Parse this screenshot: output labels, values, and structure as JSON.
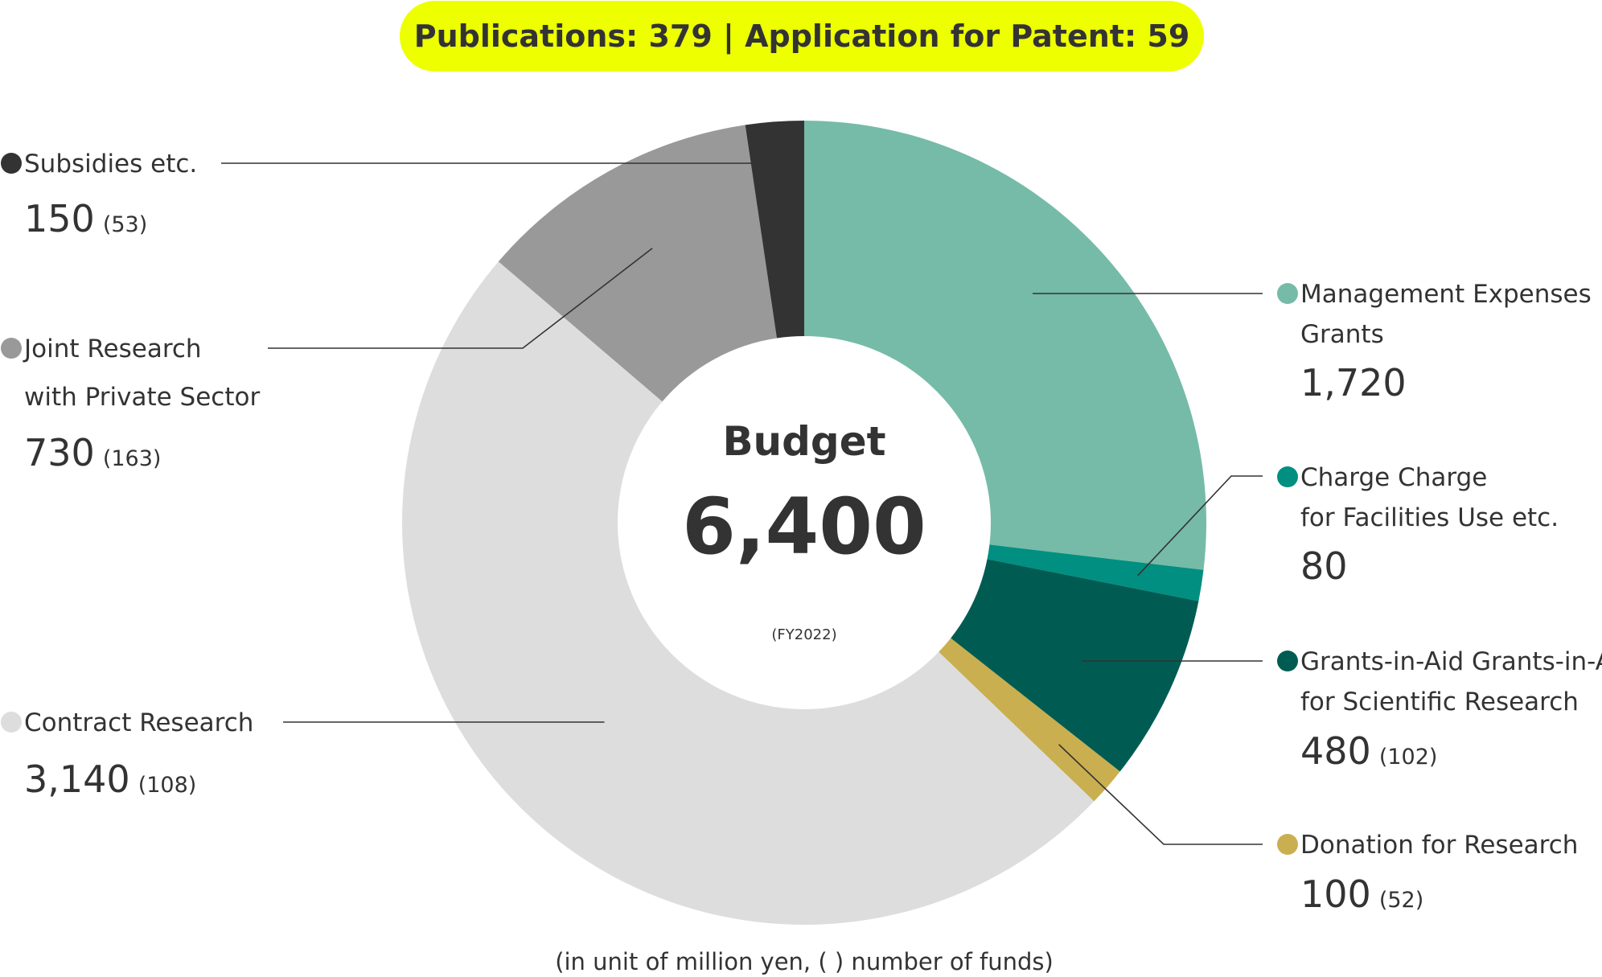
{
  "header": {
    "pill_text": "Publications: 379 | Application for Patent: 59",
    "pill_color": "#EEFF00"
  },
  "center": {
    "title": "Budget",
    "total": "6,400",
    "fiscal_year": "(FY2022)"
  },
  "note": "(in unit of million yen, ( ) number of funds)",
  "chart_data": {
    "type": "pie",
    "subtype": "donut",
    "units": "million yen",
    "total": 6400,
    "slices": [
      {
        "key": "management",
        "label_lines": [
          "Management Expenses",
          "Grants"
        ],
        "value": 1720,
        "value_text": "1,720",
        "count_text": "",
        "color": "#76BBA7",
        "side": "right"
      },
      {
        "key": "facilities",
        "label_lines": [
          "Charge Charge",
          "for Facilities Use etc."
        ],
        "value": 80,
        "value_text": "80",
        "count_text": "",
        "color": "#008F80",
        "side": "right"
      },
      {
        "key": "grants",
        "label_lines": [
          "Grants-in-Aid Grants-in-Aid",
          "for Scientific Research"
        ],
        "value": 480,
        "value_text": "480",
        "count_text": "(102)",
        "color": "#005C52",
        "side": "right"
      },
      {
        "key": "donation",
        "label_lines": [
          "Donation for Research"
        ],
        "value": 100,
        "value_text": "100",
        "count_text": "(52)",
        "color": "#C9AF50",
        "side": "right"
      },
      {
        "key": "contract",
        "label_lines": [
          "Contract Research"
        ],
        "value": 3140,
        "value_text": "3,140",
        "count_text": "(108)",
        "color": "#DDDDDD",
        "side": "left"
      },
      {
        "key": "joint",
        "label_lines": [
          "Joint Research",
          "with Private Sector"
        ],
        "value": 730,
        "value_text": "730",
        "count_text": "(163)",
        "color": "#999999",
        "side": "left"
      },
      {
        "key": "subsidies",
        "label_lines": [
          "Subsidies etc."
        ],
        "value": 150,
        "value_text": "150",
        "count_text": "(53)",
        "color": "#333333",
        "side": "left"
      }
    ]
  }
}
